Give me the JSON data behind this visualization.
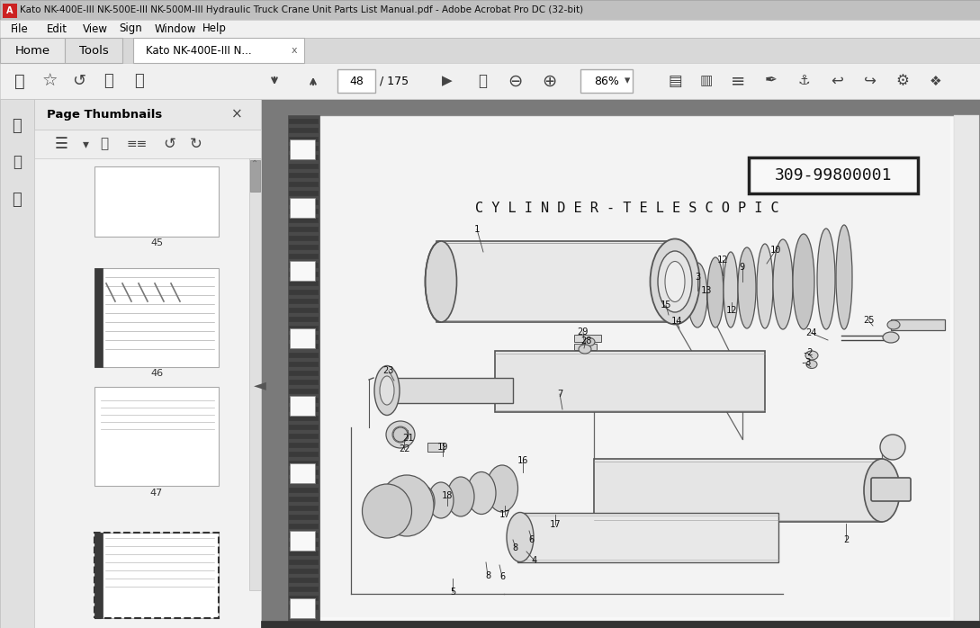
{
  "title_bar": "Kato NK-400E-III NK-500E-III NK-500M-III Hydraulic Truck Crane Unit Parts List Manual.pdf - Adobe Acrobat Pro DC (32-bit)",
  "menu_items": [
    "File",
    "Edit",
    "View",
    "Sign",
    "Window",
    "Help"
  ],
  "tab_home": "Home",
  "tab_tools": "Tools",
  "tab_active": "Kato NK-400E-III N...",
  "page_num": "48",
  "page_total": "175",
  "zoom_level": "86%",
  "panel_title": "Page Thumbnails",
  "thumb_labels": [
    "45",
    "46",
    "47"
  ],
  "diagram_title": "C Y L I N D E R - T E L E S C O P I C",
  "part_number": "309-99800001",
  "bg_color": "#c8c8c8",
  "toolbar_bg": "#f0f0f0",
  "panel_bg": "#f0f0f0",
  "diagram_bg": "#f2f2f2",
  "page_bg": "#f5f5f5",
  "fig_width": 10.89,
  "fig_height": 6.98
}
